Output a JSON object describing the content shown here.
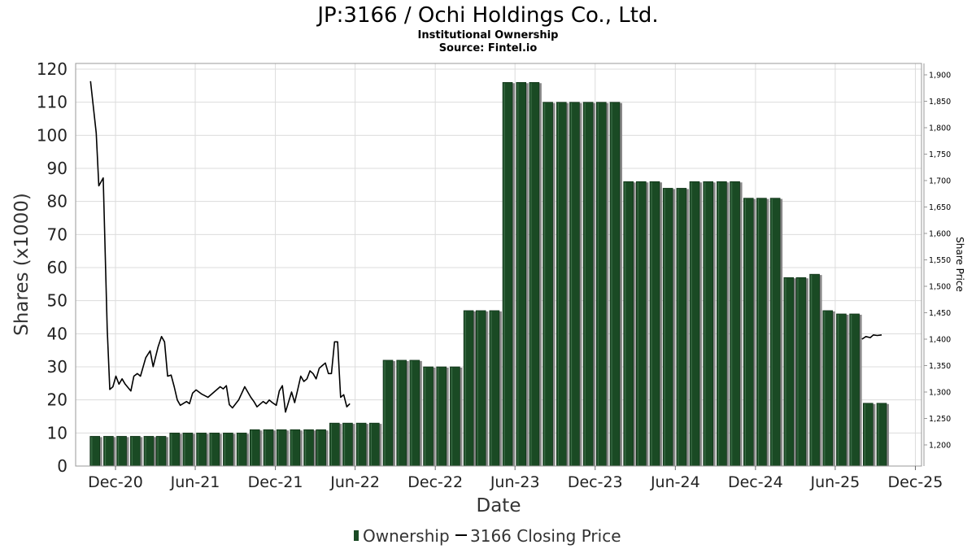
{
  "chart_data": {
    "type": "bar",
    "title": "JP:3166 / Ochi Holdings Co., Ltd.",
    "subtitle_1": "Institutional Ownership",
    "subtitle_2": "Source: Fintel.io",
    "xlabel": "Date",
    "ylabel": "Shares (x1000)",
    "y2label": "Share Price",
    "ylim": [
      0,
      120
    ],
    "y2lim": [
      1175,
      1905
    ],
    "xlim": [
      "2020-09-01",
      "2025-12-15"
    ],
    "grid": true,
    "legend_position": "bottom",
    "y_ticks": [
      "0",
      "10",
      "20",
      "30",
      "40",
      "50",
      "60",
      "70",
      "80",
      "90",
      "100",
      "110",
      "120"
    ],
    "y2_ticks": [
      "1,200",
      "1,250",
      "1,300",
      "1,350",
      "1,400",
      "1,450",
      "1,500",
      "1,550",
      "1,600",
      "1,650",
      "1,700",
      "1,750",
      "1,800",
      "1,850",
      "1,900"
    ],
    "x_ticks": [
      {
        "label": "Dec-20",
        "date": "2020-12-01"
      },
      {
        "label": "Jun-21",
        "date": "2021-06-01"
      },
      {
        "label": "Dec-21",
        "date": "2021-12-01"
      },
      {
        "label": "Jun-22",
        "date": "2022-06-01"
      },
      {
        "label": "Dec-22",
        "date": "2022-12-01"
      },
      {
        "label": "Jun-23",
        "date": "2023-06-01"
      },
      {
        "label": "Dec-23",
        "date": "2023-12-01"
      },
      {
        "label": "Jun-24",
        "date": "2024-06-01"
      },
      {
        "label": "Dec-24",
        "date": "2024-12-01"
      },
      {
        "label": "Jun-25",
        "date": "2025-06-01"
      },
      {
        "label": "Dec-25",
        "date": "2025-12-01"
      }
    ],
    "series": [
      {
        "name": "Ownership",
        "color": "#1a4a24",
        "shadow_color": "#888888",
        "points": [
          {
            "date": "2020-10-15",
            "value": 9
          },
          {
            "date": "2020-11-15",
            "value": 9
          },
          {
            "date": "2020-12-15",
            "value": 9
          },
          {
            "date": "2021-01-15",
            "value": 9
          },
          {
            "date": "2021-02-15",
            "value": 9
          },
          {
            "date": "2021-03-15",
            "value": 9
          },
          {
            "date": "2021-04-15",
            "value": 10
          },
          {
            "date": "2021-05-15",
            "value": 10
          },
          {
            "date": "2021-06-15",
            "value": 10
          },
          {
            "date": "2021-07-15",
            "value": 10
          },
          {
            "date": "2021-08-15",
            "value": 10
          },
          {
            "date": "2021-09-15",
            "value": 10
          },
          {
            "date": "2021-10-15",
            "value": 11
          },
          {
            "date": "2021-11-15",
            "value": 11
          },
          {
            "date": "2021-12-15",
            "value": 11
          },
          {
            "date": "2022-01-15",
            "value": 11
          },
          {
            "date": "2022-02-15",
            "value": 11
          },
          {
            "date": "2022-03-15",
            "value": 11
          },
          {
            "date": "2022-04-15",
            "value": 13
          },
          {
            "date": "2022-05-15",
            "value": 13
          },
          {
            "date": "2022-06-15",
            "value": 13
          },
          {
            "date": "2022-07-15",
            "value": 13
          },
          {
            "date": "2022-08-15",
            "value": 32
          },
          {
            "date": "2022-09-15",
            "value": 32
          },
          {
            "date": "2022-10-15",
            "value": 32
          },
          {
            "date": "2022-11-15",
            "value": 30
          },
          {
            "date": "2022-12-15",
            "value": 30
          },
          {
            "date": "2023-01-15",
            "value": 30
          },
          {
            "date": "2023-02-15",
            "value": 47
          },
          {
            "date": "2023-03-15",
            "value": 47
          },
          {
            "date": "2023-04-15",
            "value": 47
          },
          {
            "date": "2023-05-15",
            "value": 116
          },
          {
            "date": "2023-06-15",
            "value": 116
          },
          {
            "date": "2023-07-15",
            "value": 116
          },
          {
            "date": "2023-08-15",
            "value": 110
          },
          {
            "date": "2023-09-15",
            "value": 110
          },
          {
            "date": "2023-10-15",
            "value": 110
          },
          {
            "date": "2023-11-15",
            "value": 110
          },
          {
            "date": "2023-12-15",
            "value": 110
          },
          {
            "date": "2024-01-15",
            "value": 110
          },
          {
            "date": "2024-02-15",
            "value": 86
          },
          {
            "date": "2024-03-15",
            "value": 86
          },
          {
            "date": "2024-04-15",
            "value": 86
          },
          {
            "date": "2024-05-15",
            "value": 84
          },
          {
            "date": "2024-06-15",
            "value": 84
          },
          {
            "date": "2024-07-15",
            "value": 86
          },
          {
            "date": "2024-08-15",
            "value": 86
          },
          {
            "date": "2024-09-15",
            "value": 86
          },
          {
            "date": "2024-10-15",
            "value": 86
          },
          {
            "date": "2024-11-15",
            "value": 81
          },
          {
            "date": "2024-12-15",
            "value": 81
          },
          {
            "date": "2025-01-15",
            "value": 81
          },
          {
            "date": "2025-02-15",
            "value": 57
          },
          {
            "date": "2025-03-15",
            "value": 57
          },
          {
            "date": "2025-04-15",
            "value": 58
          },
          {
            "date": "2025-05-15",
            "value": 47
          },
          {
            "date": "2025-06-15",
            "value": 46
          },
          {
            "date": "2025-07-15",
            "value": 46
          },
          {
            "date": "2025-08-15",
            "value": 19
          },
          {
            "date": "2025-09-15",
            "value": 19
          }
        ]
      },
      {
        "name": "3166 Closing Price",
        "color": "#000000",
        "points": [
          {
            "date": "2020-10-05",
            "value": 1888
          },
          {
            "date": "2020-10-18",
            "value": 1790
          },
          {
            "date": "2020-10-24",
            "value": 1690
          },
          {
            "date": "2020-11-03",
            "value": 1705
          },
          {
            "date": "2020-11-12",
            "value": 1420
          },
          {
            "date": "2020-11-18",
            "value": 1305
          },
          {
            "date": "2020-11-25",
            "value": 1310
          },
          {
            "date": "2020-12-02",
            "value": 1330
          },
          {
            "date": "2020-12-09",
            "value": 1315
          },
          {
            "date": "2020-12-16",
            "value": 1325
          },
          {
            "date": "2020-12-23",
            "value": 1315
          },
          {
            "date": "2021-01-05",
            "value": 1302
          },
          {
            "date": "2021-01-12",
            "value": 1330
          },
          {
            "date": "2021-01-20",
            "value": 1335
          },
          {
            "date": "2021-01-27",
            "value": 1330
          },
          {
            "date": "2021-02-08",
            "value": 1365
          },
          {
            "date": "2021-02-18",
            "value": 1378
          },
          {
            "date": "2021-02-25",
            "value": 1348
          },
          {
            "date": "2021-03-08",
            "value": 1385
          },
          {
            "date": "2021-03-16",
            "value": 1405
          },
          {
            "date": "2021-03-23",
            "value": 1395
          },
          {
            "date": "2021-03-30",
            "value": 1330
          },
          {
            "date": "2021-04-07",
            "value": 1332
          },
          {
            "date": "2021-04-14",
            "value": 1310
          },
          {
            "date": "2021-04-21",
            "value": 1285
          },
          {
            "date": "2021-04-28",
            "value": 1275
          },
          {
            "date": "2021-05-12",
            "value": 1282
          },
          {
            "date": "2021-05-19",
            "value": 1278
          },
          {
            "date": "2021-05-26",
            "value": 1298
          },
          {
            "date": "2021-06-03",
            "value": 1304
          },
          {
            "date": "2021-06-16",
            "value": 1296
          },
          {
            "date": "2021-06-30",
            "value": 1290
          },
          {
            "date": "2021-07-14",
            "value": 1300
          },
          {
            "date": "2021-07-28",
            "value": 1310
          },
          {
            "date": "2021-08-04",
            "value": 1306
          },
          {
            "date": "2021-08-11",
            "value": 1312
          },
          {
            "date": "2021-08-18",
            "value": 1276
          },
          {
            "date": "2021-08-25",
            "value": 1270
          },
          {
            "date": "2021-09-08",
            "value": 1285
          },
          {
            "date": "2021-09-22",
            "value": 1310
          },
          {
            "date": "2021-10-06",
            "value": 1290
          },
          {
            "date": "2021-10-13",
            "value": 1282
          },
          {
            "date": "2021-10-20",
            "value": 1272
          },
          {
            "date": "2021-11-03",
            "value": 1282
          },
          {
            "date": "2021-11-10",
            "value": 1278
          },
          {
            "date": "2021-11-17",
            "value": 1285
          },
          {
            "date": "2021-11-24",
            "value": 1280
          },
          {
            "date": "2021-12-03",
            "value": 1275
          },
          {
            "date": "2021-12-10",
            "value": 1302
          },
          {
            "date": "2021-12-17",
            "value": 1312
          },
          {
            "date": "2021-12-24",
            "value": 1262
          },
          {
            "date": "2022-01-07",
            "value": 1300
          },
          {
            "date": "2022-01-14",
            "value": 1280
          },
          {
            "date": "2022-01-21",
            "value": 1305
          },
          {
            "date": "2022-01-28",
            "value": 1330
          },
          {
            "date": "2022-02-04",
            "value": 1320
          },
          {
            "date": "2022-02-11",
            "value": 1325
          },
          {
            "date": "2022-02-18",
            "value": 1340
          },
          {
            "date": "2022-02-25",
            "value": 1335
          },
          {
            "date": "2022-03-04",
            "value": 1325
          },
          {
            "date": "2022-03-11",
            "value": 1345
          },
          {
            "date": "2022-03-18",
            "value": 1350
          },
          {
            "date": "2022-03-25",
            "value": 1355
          },
          {
            "date": "2022-04-01",
            "value": 1335
          },
          {
            "date": "2022-04-08",
            "value": 1335
          },
          {
            "date": "2022-04-15",
            "value": 1395
          },
          {
            "date": "2022-04-22",
            "value": 1395
          },
          {
            "date": "2022-04-29",
            "value": 1290
          },
          {
            "date": "2022-05-06",
            "value": 1295
          },
          {
            "date": "2022-05-13",
            "value": 1272
          },
          {
            "date": "2022-05-20",
            "value": 1278
          }
        ],
        "visible_tail": [
          {
            "date": "2025-08-01",
            "value": 1400
          },
          {
            "date": "2025-08-10",
            "value": 1405
          },
          {
            "date": "2025-08-20",
            "value": 1403
          },
          {
            "date": "2025-08-27",
            "value": 1408
          },
          {
            "date": "2025-09-05",
            "value": 1407
          },
          {
            "date": "2025-09-15",
            "value": 1408
          }
        ]
      }
    ]
  }
}
